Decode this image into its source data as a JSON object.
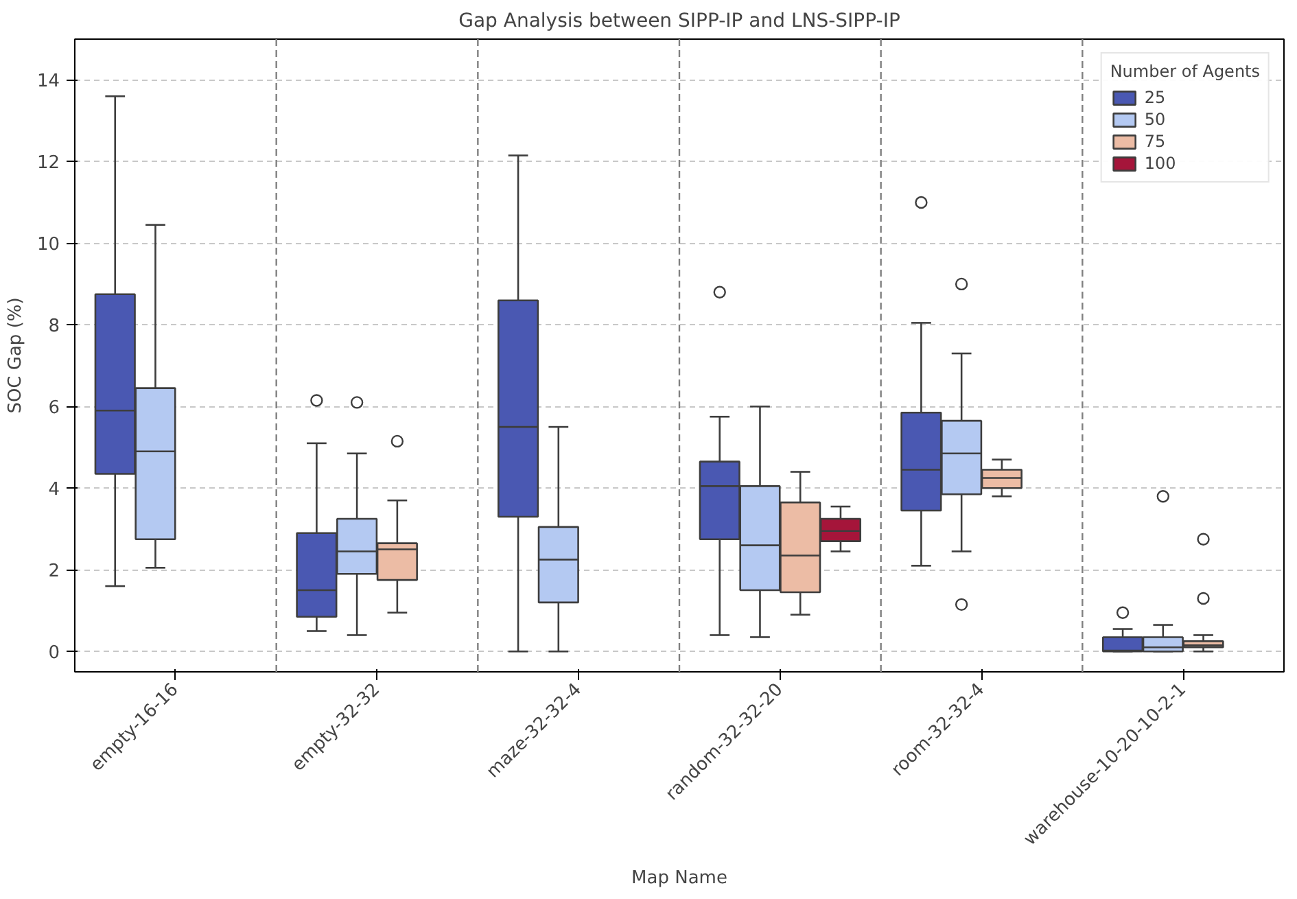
{
  "chart_data": {
    "type": "box",
    "title": "Gap Analysis between SIPP-IP and LNS-SIPP-IP",
    "xlabel": "Map Name",
    "ylabel": "SOC Gap (%)",
    "legend_title": "Number of Agents",
    "categories": [
      "empty-16-16",
      "empty-32-32",
      "maze-32-32-4",
      "random-32-32-20",
      "room-32-32-4",
      "warehouse-10-20-10-2-1"
    ],
    "ylim": [
      -0.5,
      15
    ],
    "yticks": [
      0,
      2,
      4,
      6,
      8,
      10,
      12,
      14
    ],
    "grid": "y",
    "legend": "top right",
    "series": [
      {
        "name": "25",
        "color": "#4a58b2",
        "boxes": [
          {
            "low": 1.6,
            "q1": 4.35,
            "median": 5.9,
            "q3": 8.75,
            "high": 13.6
          },
          {
            "low": 0.5,
            "q1": 0.85,
            "median": 1.5,
            "q3": 2.9,
            "high": 5.1,
            "outliers": [
              6.15
            ]
          },
          {
            "low": 0.0,
            "q1": 3.3,
            "median": 5.5,
            "q3": 8.6,
            "high": 12.15
          },
          {
            "low": 0.4,
            "q1": 2.75,
            "median": 4.05,
            "q3": 4.65,
            "high": 5.75,
            "outliers": [
              8.8
            ]
          },
          {
            "low": 2.1,
            "q1": 3.45,
            "median": 4.45,
            "q3": 5.85,
            "high": 8.05,
            "outliers": [
              11.0
            ]
          },
          {
            "low": 0.0,
            "q1": 0.0,
            "median": 0.02,
            "q3": 0.35,
            "high": 0.55,
            "outliers": [
              0.95
            ]
          }
        ]
      },
      {
        "name": "50",
        "color": "#b4c9f2",
        "boxes": [
          {
            "low": 2.05,
            "q1": 2.75,
            "median": 4.9,
            "q3": 6.45,
            "high": 10.45
          },
          {
            "low": 0.4,
            "q1": 1.9,
            "median": 2.45,
            "q3": 3.25,
            "high": 4.85,
            "outliers": [
              6.1
            ]
          },
          {
            "low": 0.0,
            "q1": 1.2,
            "median": 2.25,
            "q3": 3.05,
            "high": 5.5
          },
          {
            "low": 0.35,
            "q1": 1.5,
            "median": 2.6,
            "q3": 4.05,
            "high": 6.0
          },
          {
            "low": 2.45,
            "q1": 3.85,
            "median": 4.85,
            "q3": 5.65,
            "high": 7.3,
            "outliers": [
              9.0,
              1.15
            ]
          },
          {
            "low": 0.0,
            "q1": 0.0,
            "median": 0.1,
            "q3": 0.35,
            "high": 0.65,
            "outliers": [
              3.8
            ]
          }
        ]
      },
      {
        "name": "75",
        "color": "#ecbca5",
        "boxes": [
          null,
          {
            "low": 0.95,
            "q1": 1.75,
            "median": 2.5,
            "q3": 2.65,
            "high": 3.7,
            "outliers": [
              5.15
            ]
          },
          null,
          {
            "low": 0.9,
            "q1": 1.45,
            "median": 2.35,
            "q3": 3.65,
            "high": 4.4
          },
          {
            "low": 3.8,
            "q1": 4.0,
            "median": 4.25,
            "q3": 4.45,
            "high": 4.7
          },
          {
            "low": 0.0,
            "q1": 0.1,
            "median": 0.15,
            "q3": 0.25,
            "high": 0.4,
            "outliers": [
              2.75,
              1.3
            ]
          }
        ]
      },
      {
        "name": "100",
        "color": "#a5153a",
        "boxes": [
          null,
          null,
          null,
          {
            "low": 2.45,
            "q1": 2.7,
            "median": 2.95,
            "q3": 3.25,
            "high": 3.55
          },
          null,
          null
        ]
      }
    ]
  }
}
